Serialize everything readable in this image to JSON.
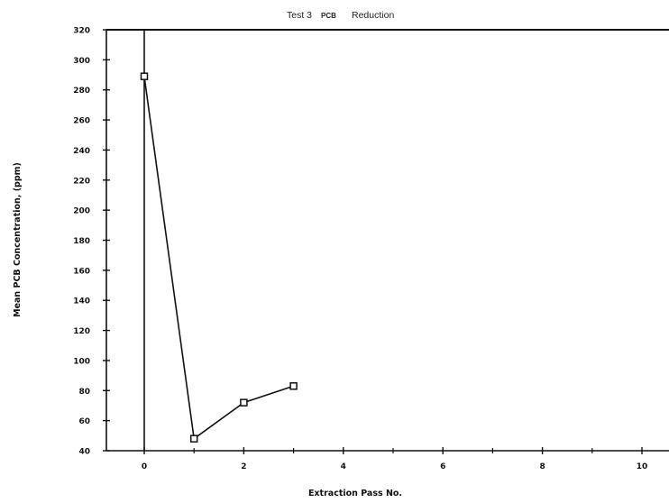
{
  "chart_data": {
    "type": "line",
    "title_parts": [
      "Test 3",
      "PCB",
      "Reduction"
    ],
    "xlabel": "Extraction Pass No.",
    "ylabel": "Mean PCB Concentration, (ppm)",
    "xlim": [
      -0.7,
      10.5
    ],
    "ylim": [
      40,
      320
    ],
    "x_ticks": [
      0,
      2,
      4,
      6,
      8,
      10
    ],
    "y_ticks": [
      40,
      60,
      80,
      100,
      120,
      140,
      160,
      180,
      200,
      220,
      240,
      260,
      280,
      300,
      320
    ],
    "grid": false,
    "marker": "square",
    "colors": {
      "line": "#111111",
      "axis": "#111111",
      "background": "#ffffff"
    },
    "series": [
      {
        "x": [
          0,
          1,
          2,
          3
        ],
        "values": [
          289,
          48,
          72,
          83
        ]
      }
    ]
  }
}
